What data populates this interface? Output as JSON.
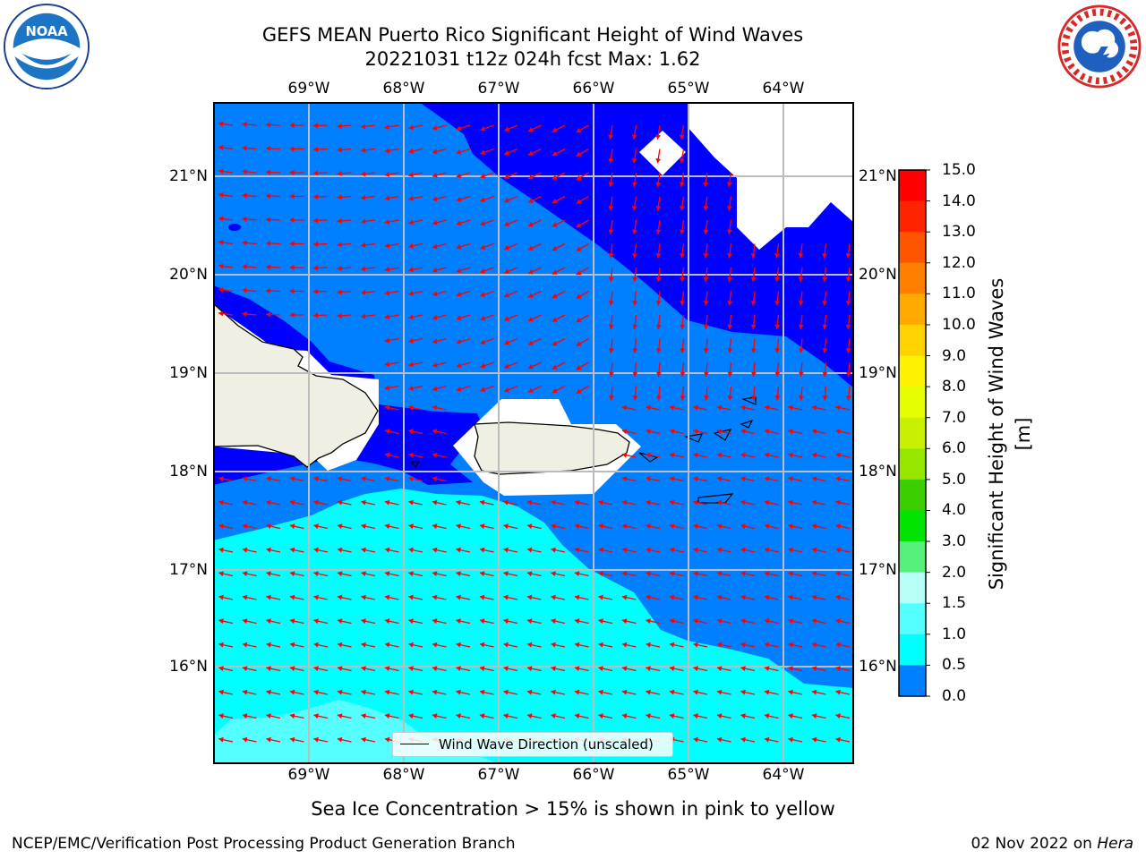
{
  "header": {
    "title_line1": "GEFS MEAN Puerto Rico Significant Height of Wind Waves",
    "title_line2": "20221031 t12z 024h fcst   Max: 1.62"
  },
  "axes": {
    "lon_labels": [
      "69°W",
      "68°W",
      "67°W",
      "66°W",
      "65°W",
      "64°W"
    ],
    "lat_labels": [
      "21°N",
      "20°N",
      "19°N",
      "18°N",
      "17°N",
      "16°N"
    ]
  },
  "legend": {
    "label": "Wind Wave Direction (unscaled)"
  },
  "colorbar": {
    "title": "Significant Height of Wind Waves [m]",
    "ticks": [
      "15.0",
      "14.0",
      "13.0",
      "12.0",
      "11.0",
      "10.0",
      "9.0",
      "8.0",
      "7.0",
      "6.0",
      "5.0",
      "4.0",
      "3.0",
      "2.0",
      "1.5",
      "1.0",
      "0.5",
      "0.0"
    ],
    "colors": [
      "#ff0000",
      "#ff2400",
      "#ff5500",
      "#ff8000",
      "#ffaa00",
      "#ffd200",
      "#fff200",
      "#e6ff00",
      "#c8f000",
      "#96e600",
      "#3ccf00",
      "#00e400",
      "#55f07a",
      "#b8fff8",
      "#55ffff",
      "#00ffff",
      "#0080ff",
      "#0000ff"
    ]
  },
  "map": {
    "water_colors": {
      "band_0_0.5": "#0000ff",
      "band_0.5_1.0": "#0080ff",
      "band_1.0_1.5": "#00ffff",
      "band_1.5_2.0": "#55ffff"
    },
    "land_color": "#efefe3",
    "arrow_color": "#ff0000"
  },
  "footer": {
    "note": "Sea Ice Concentration > 15% is shown in pink to yellow",
    "left": "NCEP/EMC/Verification Post Processing Product Generation Branch",
    "right_date": "02 Nov 2022 on ",
    "right_host": "Hera"
  },
  "logos": {
    "noaa": "NOAA",
    "nws": "NATIONAL WEATHER SERVICE"
  }
}
